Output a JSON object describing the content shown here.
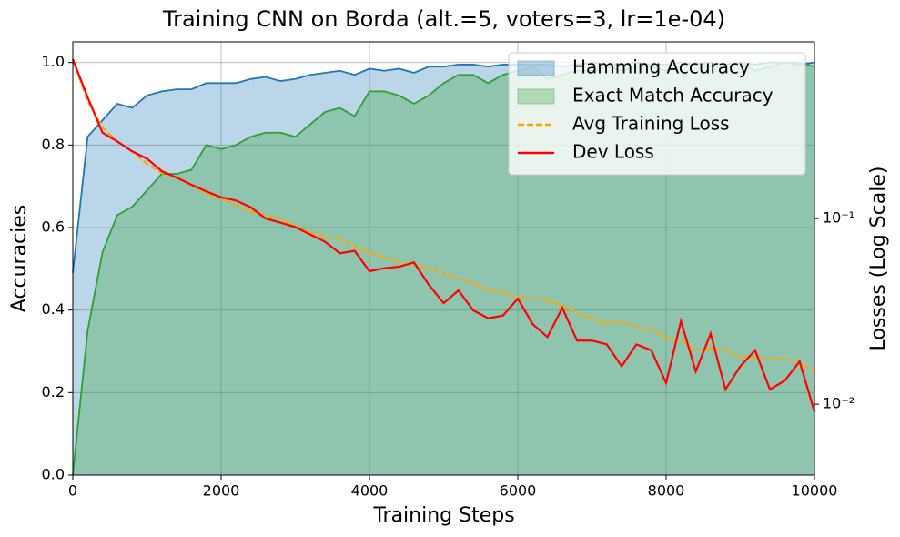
{
  "chart_data": {
    "type": "line",
    "title": "Training CNN on Borda (alt.=5, voters=3, lr=1e-04)",
    "xlabel": "Training Steps",
    "ylabel": "Accuracies",
    "y2label": "Losses (Log Scale)",
    "y2color": "red",
    "x": [
      0,
      200,
      400,
      600,
      800,
      1000,
      1200,
      1400,
      1600,
      1800,
      2000,
      2200,
      2400,
      2600,
      2800,
      3000,
      3200,
      3400,
      3600,
      3800,
      4000,
      4200,
      4400,
      4600,
      4800,
      5000,
      5200,
      5400,
      5600,
      5800,
      6000,
      6200,
      6400,
      6600,
      6800,
      7000,
      7200,
      7400,
      7600,
      7800,
      8000,
      8200,
      8400,
      8600,
      8800,
      9000,
      9200,
      9400,
      9600,
      9800,
      10000
    ],
    "xlim": [
      0,
      10000
    ],
    "xticks": [
      0,
      2000,
      4000,
      6000,
      8000,
      10000
    ],
    "ylim": [
      0,
      1.05
    ],
    "yticks": [
      {
        "value": 0,
        "label": "0.0"
      },
      0.2,
      0.4,
      0.6,
      0.8,
      {
        "value": 1,
        "label": "1.0"
      }
    ],
    "y2scale": "log",
    "y2lim": [
      0.00415,
      0.894
    ],
    "y2ticks": [
      {
        "value": 0.01,
        "label": "10⁻²"
      },
      {
        "value": 0.1,
        "label": "10⁻¹"
      }
    ],
    "grid": true,
    "legend": "upper right",
    "series": [
      {
        "name": "Hamming Accuracy",
        "kind": "area",
        "color": "#1f77b4",
        "values": [
          0.49,
          0.82,
          0.86,
          0.9,
          0.89,
          0.92,
          0.93,
          0.935,
          0.935,
          0.95,
          0.95,
          0.95,
          0.96,
          0.965,
          0.955,
          0.96,
          0.97,
          0.975,
          0.98,
          0.97,
          0.985,
          0.98,
          0.985,
          0.975,
          0.99,
          0.99,
          0.995,
          0.995,
          0.99,
          0.995,
          0.995,
          0.995,
          0.995,
          0.99,
          0.995,
          1.0,
          0.995,
          0.995,
          1.0,
          0.995,
          0.995,
          1.0,
          0.995,
          1.0,
          0.995,
          1.0,
          0.995,
          1.0,
          1.0,
          0.995,
          1.0
        ]
      },
      {
        "name": "Exact Match Accuracy",
        "kind": "area",
        "color": "#2ca02c",
        "values": [
          0,
          0.35,
          0.54,
          0.63,
          0.65,
          0.69,
          0.73,
          0.73,
          0.74,
          0.8,
          0.79,
          0.8,
          0.82,
          0.83,
          0.83,
          0.82,
          0.85,
          0.88,
          0.89,
          0.87,
          0.93,
          0.93,
          0.92,
          0.9,
          0.92,
          0.95,
          0.97,
          0.97,
          0.95,
          0.97,
          0.98,
          0.99,
          0.96,
          0.97,
          0.98,
          0.98,
          0.99,
          0.98,
          0.99,
          0.99,
          0.98,
          0.99,
          1.0,
          0.99,
          0.99,
          1.0,
          0.98,
          0.99,
          1.0,
          1.0,
          0.99
        ]
      },
      {
        "name": "Avg Training Loss",
        "kind": "line",
        "linestyle": "dashed",
        "color": "orange",
        "axis": "y2",
        "values": [
          0.72,
          0.43,
          0.31,
          0.26,
          0.23,
          0.197,
          0.176,
          0.166,
          0.152,
          0.137,
          0.128,
          0.118,
          0.109,
          0.104,
          0.1,
          0.091,
          0.084,
          0.08,
          0.077,
          0.071,
          0.065,
          0.062,
          0.058,
          0.056,
          0.054,
          0.051,
          0.047,
          0.045,
          0.041,
          0.04,
          0.038,
          0.037,
          0.036,
          0.034,
          0.031,
          0.029,
          0.027,
          0.028,
          0.026,
          0.025,
          0.023,
          0.022,
          0.0195,
          0.02,
          0.0195,
          0.018,
          0.018,
          0.0175,
          0.0175,
          0.017,
          0.0147
        ]
      },
      {
        "name": "Dev Loss",
        "kind": "line",
        "color": "red",
        "axis": "y2",
        "values": [
          0.72,
          0.45,
          0.29,
          0.26,
          0.23,
          0.21,
          0.18,
          0.166,
          0.152,
          0.14,
          0.13,
          0.125,
          0.115,
          0.1,
          0.095,
          0.09,
          0.082,
          0.075,
          0.065,
          0.067,
          0.052,
          0.054,
          0.055,
          0.058,
          0.044,
          0.035,
          0.041,
          0.032,
          0.029,
          0.03,
          0.037,
          0.027,
          0.023,
          0.033,
          0.022,
          0.022,
          0.021,
          0.016,
          0.021,
          0.0195,
          0.013,
          0.028,
          0.015,
          0.024,
          0.012,
          0.016,
          0.0195,
          0.012,
          0.0134,
          0.017,
          0.0091
        ]
      }
    ]
  }
}
